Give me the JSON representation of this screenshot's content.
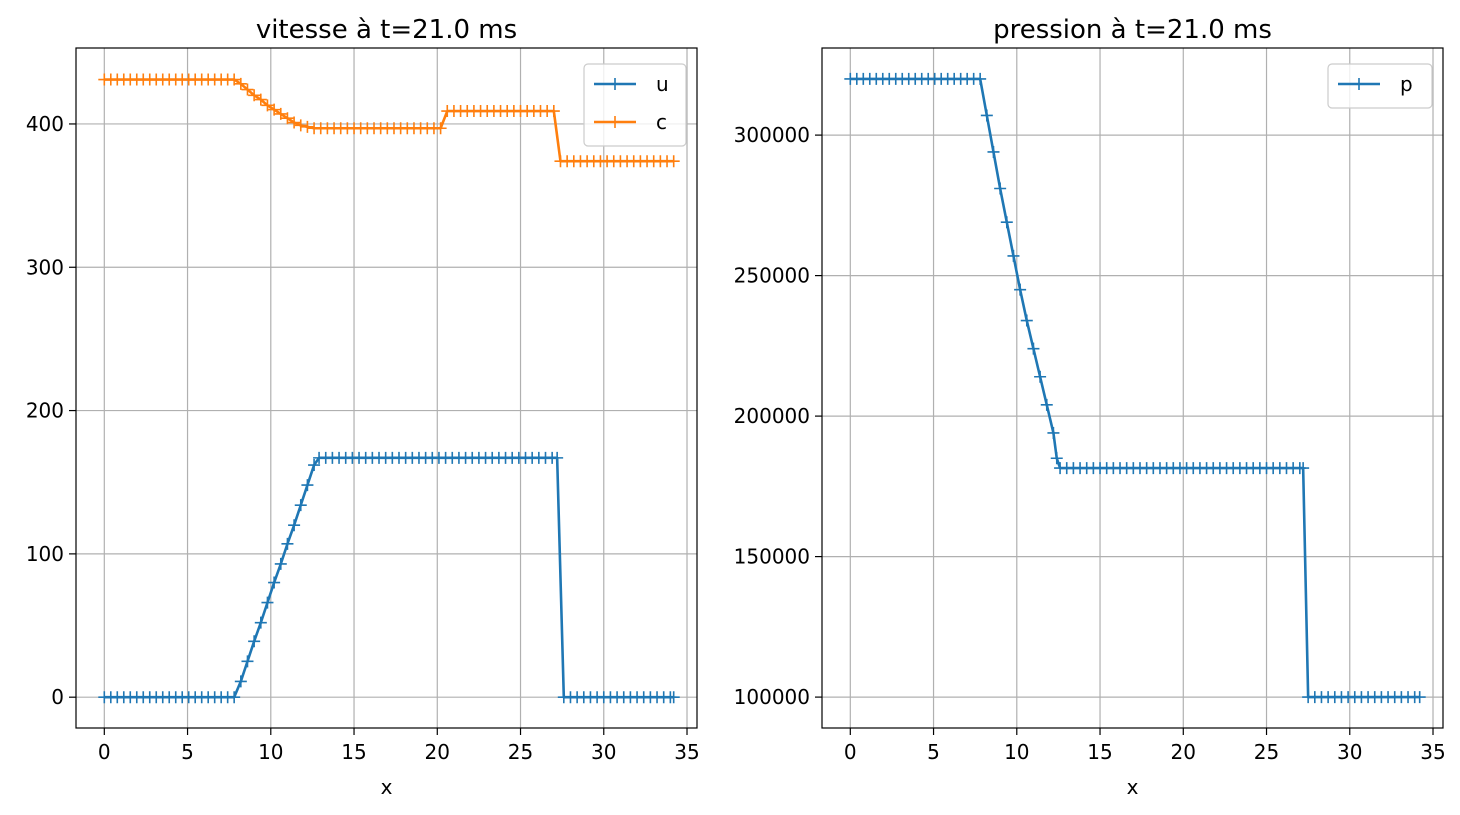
{
  "chart_data": [
    {
      "type": "line",
      "title": "vitesse à t=21.0 ms",
      "xlabel": "x",
      "ylabel": "",
      "xlim": [
        -1.7,
        35.6
      ],
      "ylim": [
        -21.5,
        453
      ],
      "xticks": [
        0,
        5,
        10,
        15,
        20,
        25,
        30,
        35
      ],
      "yticks": [
        0,
        100,
        200,
        300,
        400
      ],
      "grid": true,
      "legend": "top-right",
      "series": [
        {
          "name": "u",
          "color": "#1f77b4",
          "marker": "+",
          "points": [
            [
              0,
              0
            ],
            [
              0.39,
              0
            ],
            [
              0.78,
              0
            ],
            [
              1.17,
              0
            ],
            [
              1.56,
              0
            ],
            [
              1.95,
              0
            ],
            [
              2.34,
              0
            ],
            [
              2.73,
              0
            ],
            [
              3.12,
              0
            ],
            [
              3.51,
              0
            ],
            [
              3.9,
              0
            ],
            [
              4.29,
              0
            ],
            [
              4.68,
              0
            ],
            [
              5.07,
              0
            ],
            [
              5.46,
              0
            ],
            [
              5.85,
              0
            ],
            [
              6.24,
              0
            ],
            [
              6.63,
              0
            ],
            [
              7.02,
              0
            ],
            [
              7.41,
              0
            ],
            [
              7.8,
              0
            ],
            [
              8.2,
              11
            ],
            [
              8.6,
              25
            ],
            [
              9.0,
              39
            ],
            [
              9.4,
              52
            ],
            [
              9.8,
              66
            ],
            [
              10.2,
              80
            ],
            [
              10.6,
              93
            ],
            [
              11.0,
              107
            ],
            [
              11.4,
              120
            ],
            [
              11.8,
              134
            ],
            [
              12.2,
              148
            ],
            [
              12.6,
              162
            ],
            [
              12.9,
              167
            ],
            [
              13.3,
              167
            ],
            [
              13.7,
              167
            ],
            [
              14.1,
              167
            ],
            [
              14.5,
              167
            ],
            [
              14.9,
              167
            ],
            [
              15.3,
              167
            ],
            [
              15.7,
              167
            ],
            [
              16.1,
              167
            ],
            [
              16.5,
              167
            ],
            [
              16.9,
              167
            ],
            [
              17.3,
              167
            ],
            [
              17.7,
              167
            ],
            [
              18.1,
              167
            ],
            [
              18.5,
              167
            ],
            [
              18.9,
              167
            ],
            [
              19.3,
              167
            ],
            [
              19.7,
              167
            ],
            [
              20.1,
              167
            ],
            [
              20.5,
              167
            ],
            [
              20.9,
              167
            ],
            [
              21.3,
              167
            ],
            [
              21.7,
              167
            ],
            [
              22.1,
              167
            ],
            [
              22.5,
              167
            ],
            [
              22.9,
              167
            ],
            [
              23.3,
              167
            ],
            [
              23.7,
              167
            ],
            [
              24.1,
              167
            ],
            [
              24.5,
              167
            ],
            [
              24.9,
              167
            ],
            [
              25.3,
              167
            ],
            [
              25.7,
              167
            ],
            [
              26.1,
              167
            ],
            [
              26.5,
              167
            ],
            [
              26.9,
              167
            ],
            [
              27.2,
              167
            ],
            [
              27.6,
              0
            ],
            [
              28.0,
              0
            ],
            [
              28.4,
              0
            ],
            [
              28.8,
              0
            ],
            [
              29.2,
              0
            ],
            [
              29.6,
              0
            ],
            [
              30.0,
              0
            ],
            [
              30.4,
              0
            ],
            [
              30.8,
              0
            ],
            [
              31.2,
              0
            ],
            [
              31.6,
              0
            ],
            [
              32.0,
              0
            ],
            [
              32.4,
              0
            ],
            [
              32.8,
              0
            ],
            [
              33.2,
              0
            ],
            [
              33.6,
              0
            ],
            [
              34.0,
              0
            ],
            [
              34.2,
              0
            ]
          ]
        },
        {
          "name": "c",
          "color": "#ff7f0e",
          "marker": "+",
          "points": [
            [
              0,
              431
            ],
            [
              0.39,
              431
            ],
            [
              0.78,
              431
            ],
            [
              1.17,
              431
            ],
            [
              1.56,
              431
            ],
            [
              1.95,
              431
            ],
            [
              2.34,
              431
            ],
            [
              2.73,
              431
            ],
            [
              3.12,
              431
            ],
            [
              3.51,
              431
            ],
            [
              3.9,
              431
            ],
            [
              4.29,
              431
            ],
            [
              4.68,
              431
            ],
            [
              5.07,
              431
            ],
            [
              5.46,
              431
            ],
            [
              5.85,
              431
            ],
            [
              6.24,
              431
            ],
            [
              6.63,
              431
            ],
            [
              7.02,
              431
            ],
            [
              7.41,
              431
            ],
            [
              7.8,
              431
            ],
            [
              8.2,
              428
            ],
            [
              8.6,
              424
            ],
            [
              9.0,
              420
            ],
            [
              9.4,
              417
            ],
            [
              9.8,
              413
            ],
            [
              10.2,
              410
            ],
            [
              10.6,
              407
            ],
            [
              11.0,
              404
            ],
            [
              11.4,
              401
            ],
            [
              11.8,
              399
            ],
            [
              12.2,
              398
            ],
            [
              12.6,
              397
            ],
            [
              13.0,
              397
            ],
            [
              13.4,
              397
            ],
            [
              13.8,
              397
            ],
            [
              14.2,
              397
            ],
            [
              14.6,
              397
            ],
            [
              15.0,
              397
            ],
            [
              15.4,
              397
            ],
            [
              15.8,
              397
            ],
            [
              16.2,
              397
            ],
            [
              16.6,
              397
            ],
            [
              17.0,
              397
            ],
            [
              17.4,
              397
            ],
            [
              17.8,
              397
            ],
            [
              18.2,
              397
            ],
            [
              18.6,
              397
            ],
            [
              19.0,
              397
            ],
            [
              19.4,
              397
            ],
            [
              19.8,
              397
            ],
            [
              20.2,
              397
            ],
            [
              20.6,
              409
            ],
            [
              21.0,
              409
            ],
            [
              21.4,
              409
            ],
            [
              21.8,
              409
            ],
            [
              22.2,
              409
            ],
            [
              22.6,
              409
            ],
            [
              23.0,
              409
            ],
            [
              23.4,
              409
            ],
            [
              23.8,
              409
            ],
            [
              24.2,
              409
            ],
            [
              24.6,
              409
            ],
            [
              25.0,
              409
            ],
            [
              25.4,
              409
            ],
            [
              25.8,
              409
            ],
            [
              26.2,
              409
            ],
            [
              26.6,
              409
            ],
            [
              27.0,
              409
            ],
            [
              27.4,
              374
            ],
            [
              27.8,
              374
            ],
            [
              28.2,
              374
            ],
            [
              28.6,
              374
            ],
            [
              29.0,
              374
            ],
            [
              29.4,
              374
            ],
            [
              29.8,
              374
            ],
            [
              30.2,
              374
            ],
            [
              30.6,
              374
            ],
            [
              31.0,
              374
            ],
            [
              31.4,
              374
            ],
            [
              31.8,
              374
            ],
            [
              32.2,
              374
            ],
            [
              32.6,
              374
            ],
            [
              33.0,
              374
            ],
            [
              33.4,
              374
            ],
            [
              33.8,
              374
            ],
            [
              34.2,
              374
            ]
          ]
        }
      ]
    },
    {
      "type": "line",
      "title": "pression à t=21.0 ms",
      "xlabel": "x",
      "ylabel": "",
      "xlim": [
        -1.7,
        35.6
      ],
      "ylim": [
        89000,
        331000
      ],
      "xticks": [
        0,
        5,
        10,
        15,
        20,
        25,
        30,
        35
      ],
      "yticks": [
        100000,
        150000,
        200000,
        250000,
        300000
      ],
      "grid": true,
      "legend": "top-right",
      "series": [
        {
          "name": "p",
          "color": "#1f77b4",
          "marker": "+",
          "points": [
            [
              0,
              320000
            ],
            [
              0.39,
              320000
            ],
            [
              0.78,
              320000
            ],
            [
              1.17,
              320000
            ],
            [
              1.56,
              320000
            ],
            [
              1.95,
              320000
            ],
            [
              2.34,
              320000
            ],
            [
              2.73,
              320000
            ],
            [
              3.12,
              320000
            ],
            [
              3.51,
              320000
            ],
            [
              3.9,
              320000
            ],
            [
              4.29,
              320000
            ],
            [
              4.68,
              320000
            ],
            [
              5.07,
              320000
            ],
            [
              5.46,
              320000
            ],
            [
              5.85,
              320000
            ],
            [
              6.24,
              320000
            ],
            [
              6.63,
              320000
            ],
            [
              7.02,
              320000
            ],
            [
              7.41,
              320000
            ],
            [
              7.8,
              320000
            ],
            [
              8.2,
              307000
            ],
            [
              8.6,
              294000
            ],
            [
              9.0,
              281000
            ],
            [
              9.4,
              269000
            ],
            [
              9.8,
              257000
            ],
            [
              10.2,
              245000
            ],
            [
              10.6,
              234000
            ],
            [
              11.0,
              224000
            ],
            [
              11.4,
              214000
            ],
            [
              11.8,
              204000
            ],
            [
              12.2,
              194000
            ],
            [
              12.4,
              185000
            ],
            [
              12.6,
              181500
            ],
            [
              13.0,
              181500
            ],
            [
              13.4,
              181500
            ],
            [
              13.8,
              181500
            ],
            [
              14.2,
              181500
            ],
            [
              14.6,
              181500
            ],
            [
              15.0,
              181500
            ],
            [
              15.4,
              181500
            ],
            [
              15.8,
              181500
            ],
            [
              16.2,
              181500
            ],
            [
              16.6,
              181500
            ],
            [
              17.0,
              181500
            ],
            [
              17.4,
              181500
            ],
            [
              17.8,
              181500
            ],
            [
              18.2,
              181500
            ],
            [
              18.6,
              181500
            ],
            [
              19.0,
              181500
            ],
            [
              19.4,
              181500
            ],
            [
              19.8,
              181500
            ],
            [
              20.2,
              181500
            ],
            [
              20.6,
              181500
            ],
            [
              21.0,
              181500
            ],
            [
              21.4,
              181500
            ],
            [
              21.8,
              181500
            ],
            [
              22.2,
              181500
            ],
            [
              22.6,
              181500
            ],
            [
              23.0,
              181500
            ],
            [
              23.4,
              181500
            ],
            [
              23.8,
              181500
            ],
            [
              24.2,
              181500
            ],
            [
              24.6,
              181500
            ],
            [
              25.0,
              181500
            ],
            [
              25.4,
              181500
            ],
            [
              25.8,
              181500
            ],
            [
              26.2,
              181500
            ],
            [
              26.6,
              181500
            ],
            [
              27.0,
              181500
            ],
            [
              27.2,
              181500
            ],
            [
              27.5,
              100000
            ],
            [
              27.9,
              100000
            ],
            [
              28.3,
              100000
            ],
            [
              28.7,
              100000
            ],
            [
              29.1,
              100000
            ],
            [
              29.5,
              100000
            ],
            [
              29.9,
              100000
            ],
            [
              30.3,
              100000
            ],
            [
              30.7,
              100000
            ],
            [
              31.1,
              100000
            ],
            [
              31.5,
              100000
            ],
            [
              31.9,
              100000
            ],
            [
              32.3,
              100000
            ],
            [
              32.7,
              100000
            ],
            [
              33.1,
              100000
            ],
            [
              33.5,
              100000
            ],
            [
              33.9,
              100000
            ],
            [
              34.2,
              100000
            ]
          ]
        }
      ]
    }
  ]
}
